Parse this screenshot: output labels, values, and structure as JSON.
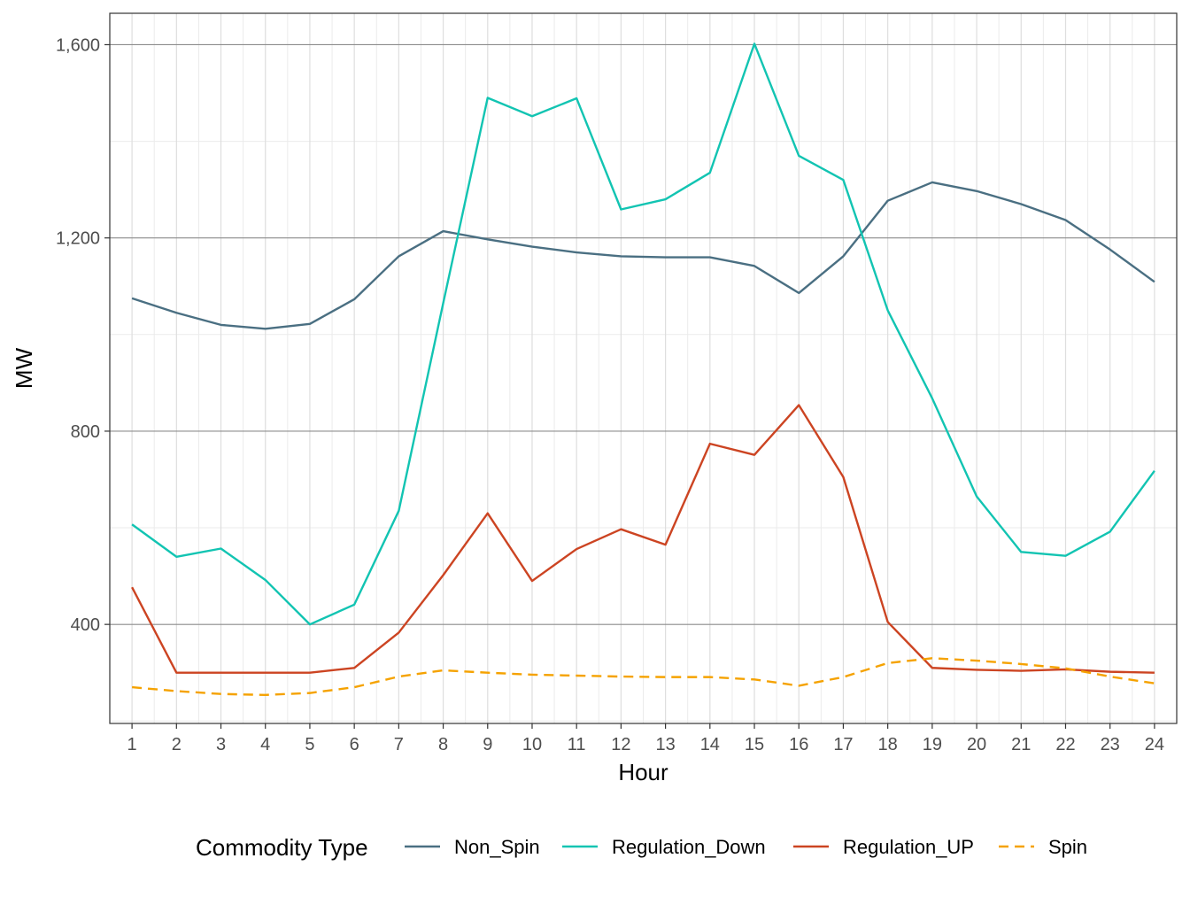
{
  "chart_data": {
    "type": "line",
    "title": "",
    "xlabel": "Hour",
    "ylabel": "MW",
    "x": [
      1,
      2,
      3,
      4,
      5,
      6,
      7,
      8,
      9,
      10,
      11,
      12,
      13,
      14,
      15,
      16,
      17,
      18,
      19,
      20,
      21,
      22,
      23,
      24
    ],
    "x_ticks": [
      "1",
      "2",
      "3",
      "4",
      "5",
      "6",
      "7",
      "8",
      "9",
      "10",
      "11",
      "12",
      "13",
      "14",
      "15",
      "16",
      "17",
      "18",
      "19",
      "20",
      "21",
      "22",
      "23",
      "24"
    ],
    "xlim": [
      0.5,
      24.5
    ],
    "ylim": [
      195,
      1665
    ],
    "y_ticks": [
      400,
      800,
      1200,
      1600
    ],
    "y_tick_labels": [
      "400",
      "800",
      "1,200",
      "1,600"
    ],
    "grid": true,
    "legend": {
      "title": "Commodity Type",
      "placement": "bottom"
    },
    "series": [
      {
        "name": "Non_Spin",
        "color": "#4a6f82",
        "dash": "solid",
        "values": [
          1075,
          1045,
          1020,
          1012,
          1022,
          1073,
          1162,
          1214,
          1197,
          1182,
          1170,
          1162,
          1160,
          1160,
          1142,
          1086,
          1162,
          1277,
          1315,
          1297,
          1270,
          1237,
          1176,
          1109
        ]
      },
      {
        "name": "Regulation_Down",
        "color": "#12c4b2",
        "dash": "solid",
        "values": [
          607,
          540,
          557,
          492,
          400,
          441,
          635,
          1065,
          1490,
          1452,
          1489,
          1259,
          1280,
          1335,
          1602,
          1370,
          1320,
          1050,
          868,
          665,
          550,
          542,
          592,
          718
        ]
      },
      {
        "name": "Regulation_UP",
        "color": "#cc4422",
        "dash": "solid",
        "values": [
          477,
          300,
          300,
          300,
          300,
          310,
          383,
          502,
          630,
          490,
          556,
          597,
          565,
          774,
          751,
          854,
          705,
          405,
          310,
          306,
          304,
          307,
          302,
          300
        ]
      },
      {
        "name": "Spin",
        "color": "#f5a200",
        "dash": "dashed",
        "values": [
          270,
          262,
          256,
          254,
          258,
          270,
          292,
          305,
          300,
          296,
          294,
          292,
          291,
          291,
          286,
          273,
          291,
          320,
          330,
          325,
          318,
          309,
          292,
          278
        ]
      }
    ]
  }
}
